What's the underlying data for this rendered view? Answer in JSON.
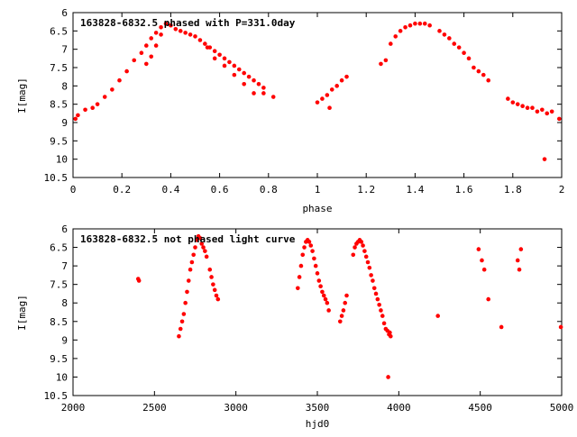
{
  "chart_data": [
    {
      "type": "scatter",
      "title": "163828-6832.5 phased with P=331.0day",
      "xlabel": "phase",
      "ylabel": "I[mag]",
      "xlim": [
        0,
        2
      ],
      "ylim": [
        10.5,
        6
      ],
      "y_inverted": true,
      "xticks": [
        "0",
        "0.2",
        "0.4",
        "0.6",
        "0.8",
        "1",
        "1.2",
        "1.4",
        "1.6",
        "1.8",
        "2"
      ],
      "xtick_values": [
        0,
        0.2,
        0.4,
        0.6,
        0.8,
        1,
        1.2,
        1.4,
        1.6,
        1.8,
        2
      ],
      "yticks": [
        "6",
        "6.5",
        "7",
        "7.5",
        "8",
        "8.5",
        "9",
        "9.5",
        "10",
        "10.5"
      ],
      "ytick_values": [
        6,
        6.5,
        7,
        7.5,
        8,
        8.5,
        9,
        9.5,
        10,
        10.5
      ],
      "grid": false,
      "color": "#ff0000",
      "series": [
        {
          "points": [
            [
              0.01,
              8.9
            ],
            [
              0.02,
              8.8
            ],
            [
              0.05,
              8.65
            ],
            [
              0.08,
              8.6
            ],
            [
              0.1,
              8.5
            ],
            [
              0.13,
              8.3
            ],
            [
              0.16,
              8.1
            ],
            [
              0.19,
              7.85
            ],
            [
              0.22,
              7.6
            ],
            [
              0.25,
              7.3
            ],
            [
              0.28,
              7.1
            ],
            [
              0.3,
              6.9
            ],
            [
              0.32,
              6.7
            ],
            [
              0.34,
              6.55
            ],
            [
              0.36,
              6.4
            ],
            [
              0.38,
              6.3
            ],
            [
              0.4,
              6.35
            ],
            [
              0.42,
              6.45
            ],
            [
              0.44,
              6.5
            ],
            [
              0.46,
              6.55
            ],
            [
              0.48,
              6.6
            ],
            [
              0.5,
              6.65
            ],
            [
              0.52,
              6.75
            ],
            [
              0.54,
              6.85
            ],
            [
              0.56,
              6.95
            ],
            [
              0.58,
              7.05
            ],
            [
              0.6,
              7.15
            ],
            [
              0.62,
              7.25
            ],
            [
              0.64,
              7.35
            ],
            [
              0.66,
              7.45
            ],
            [
              0.68,
              7.55
            ],
            [
              0.7,
              7.65
            ],
            [
              0.72,
              7.75
            ],
            [
              0.74,
              7.85
            ],
            [
              0.76,
              7.95
            ],
            [
              0.78,
              8.05
            ],
            [
              0.3,
              7.4
            ],
            [
              0.32,
              7.2
            ],
            [
              0.34,
              6.9
            ],
            [
              0.36,
              6.6
            ],
            [
              0.55,
              6.95
            ],
            [
              0.58,
              7.25
            ],
            [
              0.62,
              7.45
            ],
            [
              0.66,
              7.7
            ],
            [
              0.7,
              7.95
            ],
            [
              0.74,
              8.2
            ],
            [
              0.78,
              8.2
            ],
            [
              0.82,
              8.3
            ],
            [
              1.0,
              8.45
            ],
            [
              1.02,
              8.35
            ],
            [
              1.04,
              8.25
            ],
            [
              1.06,
              8.1
            ],
            [
              1.08,
              8.0
            ],
            [
              1.1,
              7.85
            ],
            [
              1.12,
              7.75
            ],
            [
              1.05,
              8.6
            ],
            [
              1.26,
              7.4
            ],
            [
              1.28,
              7.3
            ],
            [
              1.3,
              6.85
            ],
            [
              1.32,
              6.65
            ],
            [
              1.34,
              6.5
            ],
            [
              1.36,
              6.4
            ],
            [
              1.38,
              6.35
            ],
            [
              1.4,
              6.3
            ],
            [
              1.42,
              6.3
            ],
            [
              1.44,
              6.3
            ],
            [
              1.46,
              6.35
            ],
            [
              1.5,
              6.5
            ],
            [
              1.52,
              6.6
            ],
            [
              1.54,
              6.7
            ],
            [
              1.56,
              6.85
            ],
            [
              1.58,
              6.95
            ],
            [
              1.6,
              7.1
            ],
            [
              1.62,
              7.25
            ],
            [
              1.64,
              7.5
            ],
            [
              1.66,
              7.6
            ],
            [
              1.68,
              7.7
            ],
            [
              1.7,
              7.85
            ],
            [
              1.78,
              8.35
            ],
            [
              1.8,
              8.45
            ],
            [
              1.82,
              8.5
            ],
            [
              1.84,
              8.55
            ],
            [
              1.86,
              8.6
            ],
            [
              1.88,
              8.6
            ],
            [
              1.9,
              8.7
            ],
            [
              1.92,
              8.65
            ],
            [
              1.94,
              8.75
            ],
            [
              1.96,
              8.7
            ],
            [
              1.99,
              8.9
            ],
            [
              1.93,
              10.0
            ]
          ]
        }
      ]
    },
    {
      "type": "scatter",
      "title": "163828-6832.5 not phased light curve",
      "xlabel": "hjd0",
      "ylabel": "I[mag]",
      "xlim": [
        2000,
        5000
      ],
      "ylim": [
        10.5,
        6
      ],
      "y_inverted": true,
      "xticks": [
        "2000",
        "2500",
        "3000",
        "3500",
        "4000",
        "4500",
        "5000"
      ],
      "xtick_values": [
        2000,
        2500,
        3000,
        3500,
        4000,
        4500,
        5000
      ],
      "yticks": [
        "6",
        "6.5",
        "7",
        "7.5",
        "8",
        "8.5",
        "9",
        "9.5",
        "10",
        "10.5"
      ],
      "ytick_values": [
        6,
        6.5,
        7,
        7.5,
        8,
        8.5,
        9,
        9.5,
        10,
        10.5
      ],
      "grid": false,
      "color": "#ff0000",
      "series": [
        {
          "points": [
            [
              2400,
              7.35
            ],
            [
              2405,
              7.4
            ],
            [
              2650,
              8.9
            ],
            [
              2660,
              8.7
            ],
            [
              2670,
              8.5
            ],
            [
              2680,
              8.3
            ],
            [
              2690,
              8.0
            ],
            [
              2700,
              7.7
            ],
            [
              2710,
              7.4
            ],
            [
              2720,
              7.1
            ],
            [
              2730,
              6.9
            ],
            [
              2740,
              6.7
            ],
            [
              2750,
              6.5
            ],
            [
              2760,
              6.3
            ],
            [
              2770,
              6.2
            ],
            [
              2780,
              6.25
            ],
            [
              2790,
              6.4
            ],
            [
              2800,
              6.5
            ],
            [
              2810,
              6.6
            ],
            [
              2820,
              6.75
            ],
            [
              2840,
              7.1
            ],
            [
              2850,
              7.3
            ],
            [
              2860,
              7.5
            ],
            [
              2870,
              7.65
            ],
            [
              2880,
              7.8
            ],
            [
              2890,
              7.9
            ],
            [
              3380,
              7.6
            ],
            [
              3390,
              7.3
            ],
            [
              3400,
              7.0
            ],
            [
              3410,
              6.7
            ],
            [
              3420,
              6.5
            ],
            [
              3430,
              6.35
            ],
            [
              3440,
              6.3
            ],
            [
              3450,
              6.35
            ],
            [
              3460,
              6.45
            ],
            [
              3470,
              6.6
            ],
            [
              3480,
              6.8
            ],
            [
              3490,
              7.0
            ],
            [
              3500,
              7.2
            ],
            [
              3510,
              7.4
            ],
            [
              3520,
              7.55
            ],
            [
              3530,
              7.7
            ],
            [
              3540,
              7.8
            ],
            [
              3550,
              7.9
            ],
            [
              3560,
              8.0
            ],
            [
              3570,
              8.2
            ],
            [
              3640,
              8.5
            ],
            [
              3650,
              8.35
            ],
            [
              3660,
              8.2
            ],
            [
              3670,
              8.0
            ],
            [
              3680,
              7.8
            ],
            [
              3720,
              6.7
            ],
            [
              3730,
              6.5
            ],
            [
              3740,
              6.4
            ],
            [
              3750,
              6.35
            ],
            [
              3760,
              6.3
            ],
            [
              3770,
              6.35
            ],
            [
              3780,
              6.45
            ],
            [
              3790,
              6.6
            ],
            [
              3800,
              6.75
            ],
            [
              3810,
              6.9
            ],
            [
              3820,
              7.05
            ],
            [
              3830,
              7.25
            ],
            [
              3840,
              7.4
            ],
            [
              3850,
              7.6
            ],
            [
              3860,
              7.75
            ],
            [
              3870,
              7.9
            ],
            [
              3880,
              8.05
            ],
            [
              3890,
              8.2
            ],
            [
              3900,
              8.35
            ],
            [
              3910,
              8.55
            ],
            [
              3920,
              8.7
            ],
            [
              3930,
              8.75
            ],
            [
              3940,
              8.85
            ],
            [
              3950,
              8.9
            ],
            [
              3945,
              8.8
            ],
            [
              3935,
              10.0
            ],
            [
              4240,
              8.35
            ],
            [
              4490,
              6.55
            ],
            [
              4510,
              6.85
            ],
            [
              4525,
              7.1
            ],
            [
              4550,
              7.9
            ],
            [
              4630,
              8.65
            ],
            [
              4730,
              6.85
            ],
            [
              4740,
              7.1
            ],
            [
              4750,
              6.55
            ],
            [
              4995,
              8.65
            ]
          ]
        }
      ]
    }
  ]
}
